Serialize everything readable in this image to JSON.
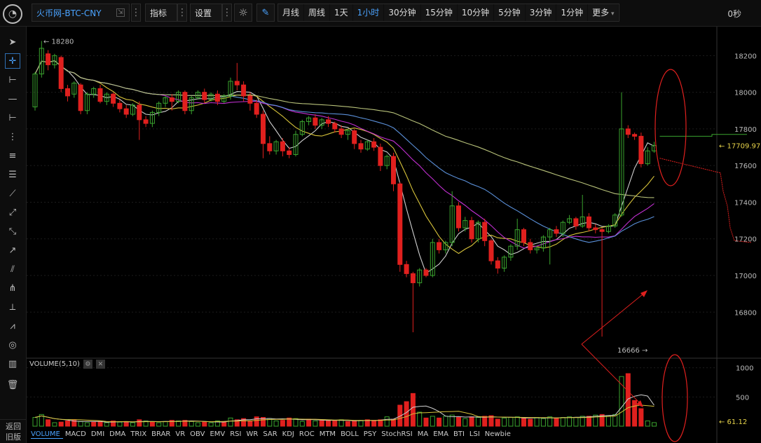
{
  "toolbar": {
    "symbol": "火币网-BTC-CNY",
    "indicators_label": "指标",
    "settings_label": "设置",
    "intervals": [
      {
        "label": "月线",
        "active": false
      },
      {
        "label": "周线",
        "active": false
      },
      {
        "label": "1天",
        "active": false
      },
      {
        "label": "1小时",
        "active": true
      },
      {
        "label": "30分钟",
        "active": false
      },
      {
        "label": "15分钟",
        "active": false
      },
      {
        "label": "10分钟",
        "active": false
      },
      {
        "label": "5分钟",
        "active": false
      },
      {
        "label": "3分钟",
        "active": false
      },
      {
        "label": "1分钟",
        "active": false
      },
      {
        "label": "更多",
        "active": false
      }
    ],
    "timer": "0秒"
  },
  "leftbar": {
    "back_label_1": "返回",
    "back_label_2": "旧版"
  },
  "price_axis": {
    "ticks": [
      "18200",
      "18000",
      "17800",
      "17600",
      "17400",
      "17200",
      "17000",
      "16800"
    ],
    "current_price": "17709.97"
  },
  "annotations": {
    "high_label": "18280",
    "low_label": "16666"
  },
  "volume_panel": {
    "title": "VOLUME(5,10)",
    "ticks": [
      "1000",
      "500"
    ],
    "current_volume": "61.12"
  },
  "indicator_tabs": [
    "VOLUME",
    "MACD",
    "DMI",
    "DMA",
    "TRIX",
    "BRAR",
    "VR",
    "OBV",
    "EMV",
    "RSI",
    "WR",
    "SAR",
    "KDJ",
    "ROC",
    "MTM",
    "BOLL",
    "PSY",
    "StochRSI",
    "MA",
    "EMA",
    "BTI",
    "LSI",
    "Newbie"
  ],
  "colors": {
    "up": "#3aa32e",
    "down": "#e0201e",
    "accent": "#4aa3ff",
    "ma_white": "#cfcfcf",
    "ma_yellow": "#d6c23a",
    "ma_magenta": "#c02fd0",
    "ma_blue": "#5a8fd8",
    "ma_olive": "#b8c27a"
  },
  "chart_data": {
    "type": "candlestick",
    "ylim": [
      16560,
      18320
    ],
    "candles": [
      [
        17920,
        18100,
        17900,
        18110
      ],
      [
        18100,
        18240,
        18080,
        18280
      ],
      [
        18210,
        18150,
        18120,
        18230
      ],
      [
        18150,
        18200,
        18130,
        18210
      ],
      [
        18190,
        18020,
        18000,
        18200
      ],
      [
        18020,
        17980,
        17950,
        18040
      ],
      [
        17990,
        18050,
        17970,
        18060
      ],
      [
        18040,
        17900,
        17880,
        18050
      ],
      [
        17900,
        17990,
        17880,
        18000
      ],
      [
        17990,
        18020,
        17970,
        18030
      ],
      [
        18020,
        17950,
        17940,
        18040
      ],
      [
        17950,
        17990,
        17930,
        18000
      ],
      [
        17990,
        17940,
        17920,
        18000
      ],
      [
        17940,
        17910,
        17890,
        17960
      ],
      [
        17910,
        17880,
        17860,
        17930
      ],
      [
        17880,
        17930,
        17870,
        17940
      ],
      [
        17930,
        17850,
        17740,
        17950
      ],
      [
        17850,
        17830,
        17810,
        17870
      ],
      [
        17830,
        17890,
        17810,
        17900
      ],
      [
        17890,
        17940,
        17870,
        17950
      ],
      [
        17940,
        17970,
        17920,
        17980
      ],
      [
        17970,
        17950,
        17900,
        17990
      ],
      [
        17950,
        18000,
        17940,
        18010
      ],
      [
        18000,
        17900,
        17880,
        18010
      ],
      [
        17900,
        17970,
        17880,
        17980
      ],
      [
        17970,
        18000,
        17960,
        18010
      ],
      [
        18000,
        17960,
        17940,
        18020
      ],
      [
        17960,
        17990,
        17950,
        18000
      ],
      [
        17990,
        17950,
        17930,
        18010
      ],
      [
        17950,
        17980,
        17940,
        17990
      ],
      [
        17980,
        18060,
        17960,
        18080
      ],
      [
        18060,
        18040,
        18010,
        18160
      ],
      [
        18040,
        17980,
        17950,
        18060
      ],
      [
        17980,
        17940,
        17900,
        18000
      ],
      [
        17940,
        17880,
        17860,
        17960
      ],
      [
        17880,
        17720,
        17640,
        17900
      ],
      [
        17720,
        17680,
        17660,
        17760
      ],
      [
        17680,
        17730,
        17660,
        17740
      ],
      [
        17730,
        17680,
        17650,
        17750
      ],
      [
        17680,
        17660,
        17640,
        17700
      ],
      [
        17660,
        17770,
        17650,
        17790
      ],
      [
        17770,
        17840,
        17760,
        17850
      ],
      [
        17840,
        17860,
        17820,
        17870
      ],
      [
        17860,
        17820,
        17800,
        17880
      ],
      [
        17820,
        17850,
        17800,
        17860
      ],
      [
        17850,
        17830,
        17810,
        17870
      ],
      [
        17830,
        17800,
        17780,
        17840
      ],
      [
        17800,
        17770,
        17750,
        17820
      ],
      [
        17770,
        17790,
        17740,
        17800
      ],
      [
        17790,
        17720,
        17690,
        17800
      ],
      [
        17720,
        17690,
        17670,
        17740
      ],
      [
        17690,
        17730,
        17680,
        17740
      ],
      [
        17730,
        17700,
        17680,
        17750
      ],
      [
        17700,
        17600,
        17570,
        17720
      ],
      [
        17600,
        17650,
        17580,
        17660
      ],
      [
        17650,
        17500,
        17460,
        17670
      ],
      [
        17500,
        17060,
        17020,
        17510
      ],
      [
        17060,
        17010,
        16990,
        17080
      ],
      [
        17010,
        16960,
        16690,
        17020
      ],
      [
        16960,
        17030,
        16940,
        17040
      ],
      [
        17030,
        17000,
        16990,
        17040
      ],
      [
        17000,
        17180,
        16990,
        17200
      ],
      [
        17180,
        17140,
        17120,
        17200
      ],
      [
        17140,
        17180,
        17120,
        17190
      ],
      [
        17180,
        17380,
        17160,
        17460
      ],
      [
        17380,
        17260,
        17240,
        17400
      ],
      [
        17260,
        17300,
        17240,
        17320
      ],
      [
        17300,
        17200,
        17180,
        17320
      ],
      [
        17200,
        17290,
        17180,
        17300
      ],
      [
        17290,
        17190,
        17160,
        17310
      ],
      [
        17190,
        17080,
        17060,
        17200
      ],
      [
        17080,
        17040,
        17010,
        17100
      ],
      [
        17040,
        17100,
        17020,
        17110
      ],
      [
        17100,
        17160,
        17080,
        17170
      ],
      [
        17160,
        17250,
        17140,
        17310
      ],
      [
        17250,
        17180,
        17160,
        17260
      ],
      [
        17180,
        17140,
        17120,
        17200
      ],
      [
        17140,
        17150,
        17120,
        17160
      ],
      [
        17150,
        17210,
        17130,
        17220
      ],
      [
        17210,
        17250,
        17060,
        17260
      ],
      [
        17250,
        17230,
        17210,
        17270
      ],
      [
        17230,
        17290,
        17210,
        17300
      ],
      [
        17290,
        17310,
        17280,
        17330
      ],
      [
        17310,
        17270,
        17250,
        17320
      ],
      [
        17270,
        17320,
        17260,
        17440
      ],
      [
        17320,
        17260,
        17240,
        17340
      ],
      [
        17260,
        17250,
        17230,
        17280
      ],
      [
        17250,
        17240,
        16666,
        17260
      ],
      [
        17240,
        17270,
        17230,
        17280
      ],
      [
        17270,
        17330,
        17260,
        17340
      ],
      [
        17330,
        17800,
        17320,
        18000
      ],
      [
        17800,
        17770,
        17750,
        17820
      ],
      [
        17770,
        17760,
        17740,
        17780
      ],
      [
        17760,
        17610,
        17590,
        17780
      ],
      [
        17610,
        17680,
        17600,
        17700
      ],
      [
        17680,
        17710,
        17670,
        17730
      ]
    ],
    "volume": [
      [
        150,
        "up"
      ],
      [
        200,
        "up"
      ],
      [
        110,
        "down"
      ],
      [
        60,
        "up"
      ],
      [
        70,
        "down"
      ],
      [
        90,
        "down"
      ],
      [
        110,
        "down"
      ],
      [
        80,
        "up"
      ],
      [
        60,
        "up"
      ],
      [
        70,
        "down"
      ],
      [
        80,
        "down"
      ],
      [
        60,
        "up"
      ],
      [
        90,
        "down"
      ],
      [
        70,
        "up"
      ],
      [
        80,
        "down"
      ],
      [
        60,
        "up"
      ],
      [
        110,
        "down"
      ],
      [
        90,
        "up"
      ],
      [
        70,
        "down"
      ],
      [
        60,
        "up"
      ],
      [
        80,
        "up"
      ],
      [
        100,
        "down"
      ],
      [
        90,
        "up"
      ],
      [
        100,
        "down"
      ],
      [
        80,
        "up"
      ],
      [
        60,
        "up"
      ],
      [
        70,
        "down"
      ],
      [
        60,
        "up"
      ],
      [
        90,
        "up"
      ],
      [
        80,
        "down"
      ],
      [
        140,
        "up"
      ],
      [
        110,
        "down"
      ],
      [
        130,
        "down"
      ],
      [
        90,
        "down"
      ],
      [
        160,
        "down"
      ],
      [
        150,
        "down"
      ],
      [
        130,
        "up"
      ],
      [
        90,
        "up"
      ],
      [
        100,
        "down"
      ],
      [
        140,
        "down"
      ],
      [
        130,
        "up"
      ],
      [
        80,
        "up"
      ],
      [
        120,
        "down"
      ],
      [
        90,
        "up"
      ],
      [
        110,
        "down"
      ],
      [
        100,
        "down"
      ],
      [
        90,
        "down"
      ],
      [
        110,
        "up"
      ],
      [
        80,
        "down"
      ],
      [
        90,
        "down"
      ],
      [
        100,
        "up"
      ],
      [
        110,
        "down"
      ],
      [
        100,
        "down"
      ],
      [
        110,
        "down"
      ],
      [
        160,
        "up"
      ],
      [
        120,
        "down"
      ],
      [
        360,
        "down"
      ],
      [
        420,
        "down"
      ],
      [
        560,
        "down"
      ],
      [
        240,
        "up"
      ],
      [
        140,
        "down"
      ],
      [
        170,
        "up"
      ],
      [
        140,
        "down"
      ],
      [
        170,
        "up"
      ],
      [
        190,
        "up"
      ],
      [
        150,
        "down"
      ],
      [
        130,
        "up"
      ],
      [
        160,
        "down"
      ],
      [
        150,
        "up"
      ],
      [
        170,
        "down"
      ],
      [
        180,
        "down"
      ],
      [
        120,
        "down"
      ],
      [
        140,
        "up"
      ],
      [
        150,
        "up"
      ],
      [
        160,
        "up"
      ],
      [
        140,
        "down"
      ],
      [
        120,
        "down"
      ],
      [
        150,
        "up"
      ],
      [
        130,
        "up"
      ],
      [
        160,
        "up"
      ],
      [
        140,
        "down"
      ],
      [
        150,
        "up"
      ],
      [
        160,
        "up"
      ],
      [
        150,
        "up"
      ],
      [
        170,
        "up"
      ],
      [
        170,
        "down"
      ],
      [
        190,
        "up"
      ],
      [
        200,
        "down"
      ],
      [
        180,
        "up"
      ],
      [
        200,
        "up"
      ],
      [
        850,
        "up"
      ],
      [
        900,
        "down"
      ],
      [
        440,
        "down"
      ],
      [
        300,
        "down"
      ],
      [
        90,
        "up"
      ],
      [
        61,
        "up"
      ]
    ]
  }
}
